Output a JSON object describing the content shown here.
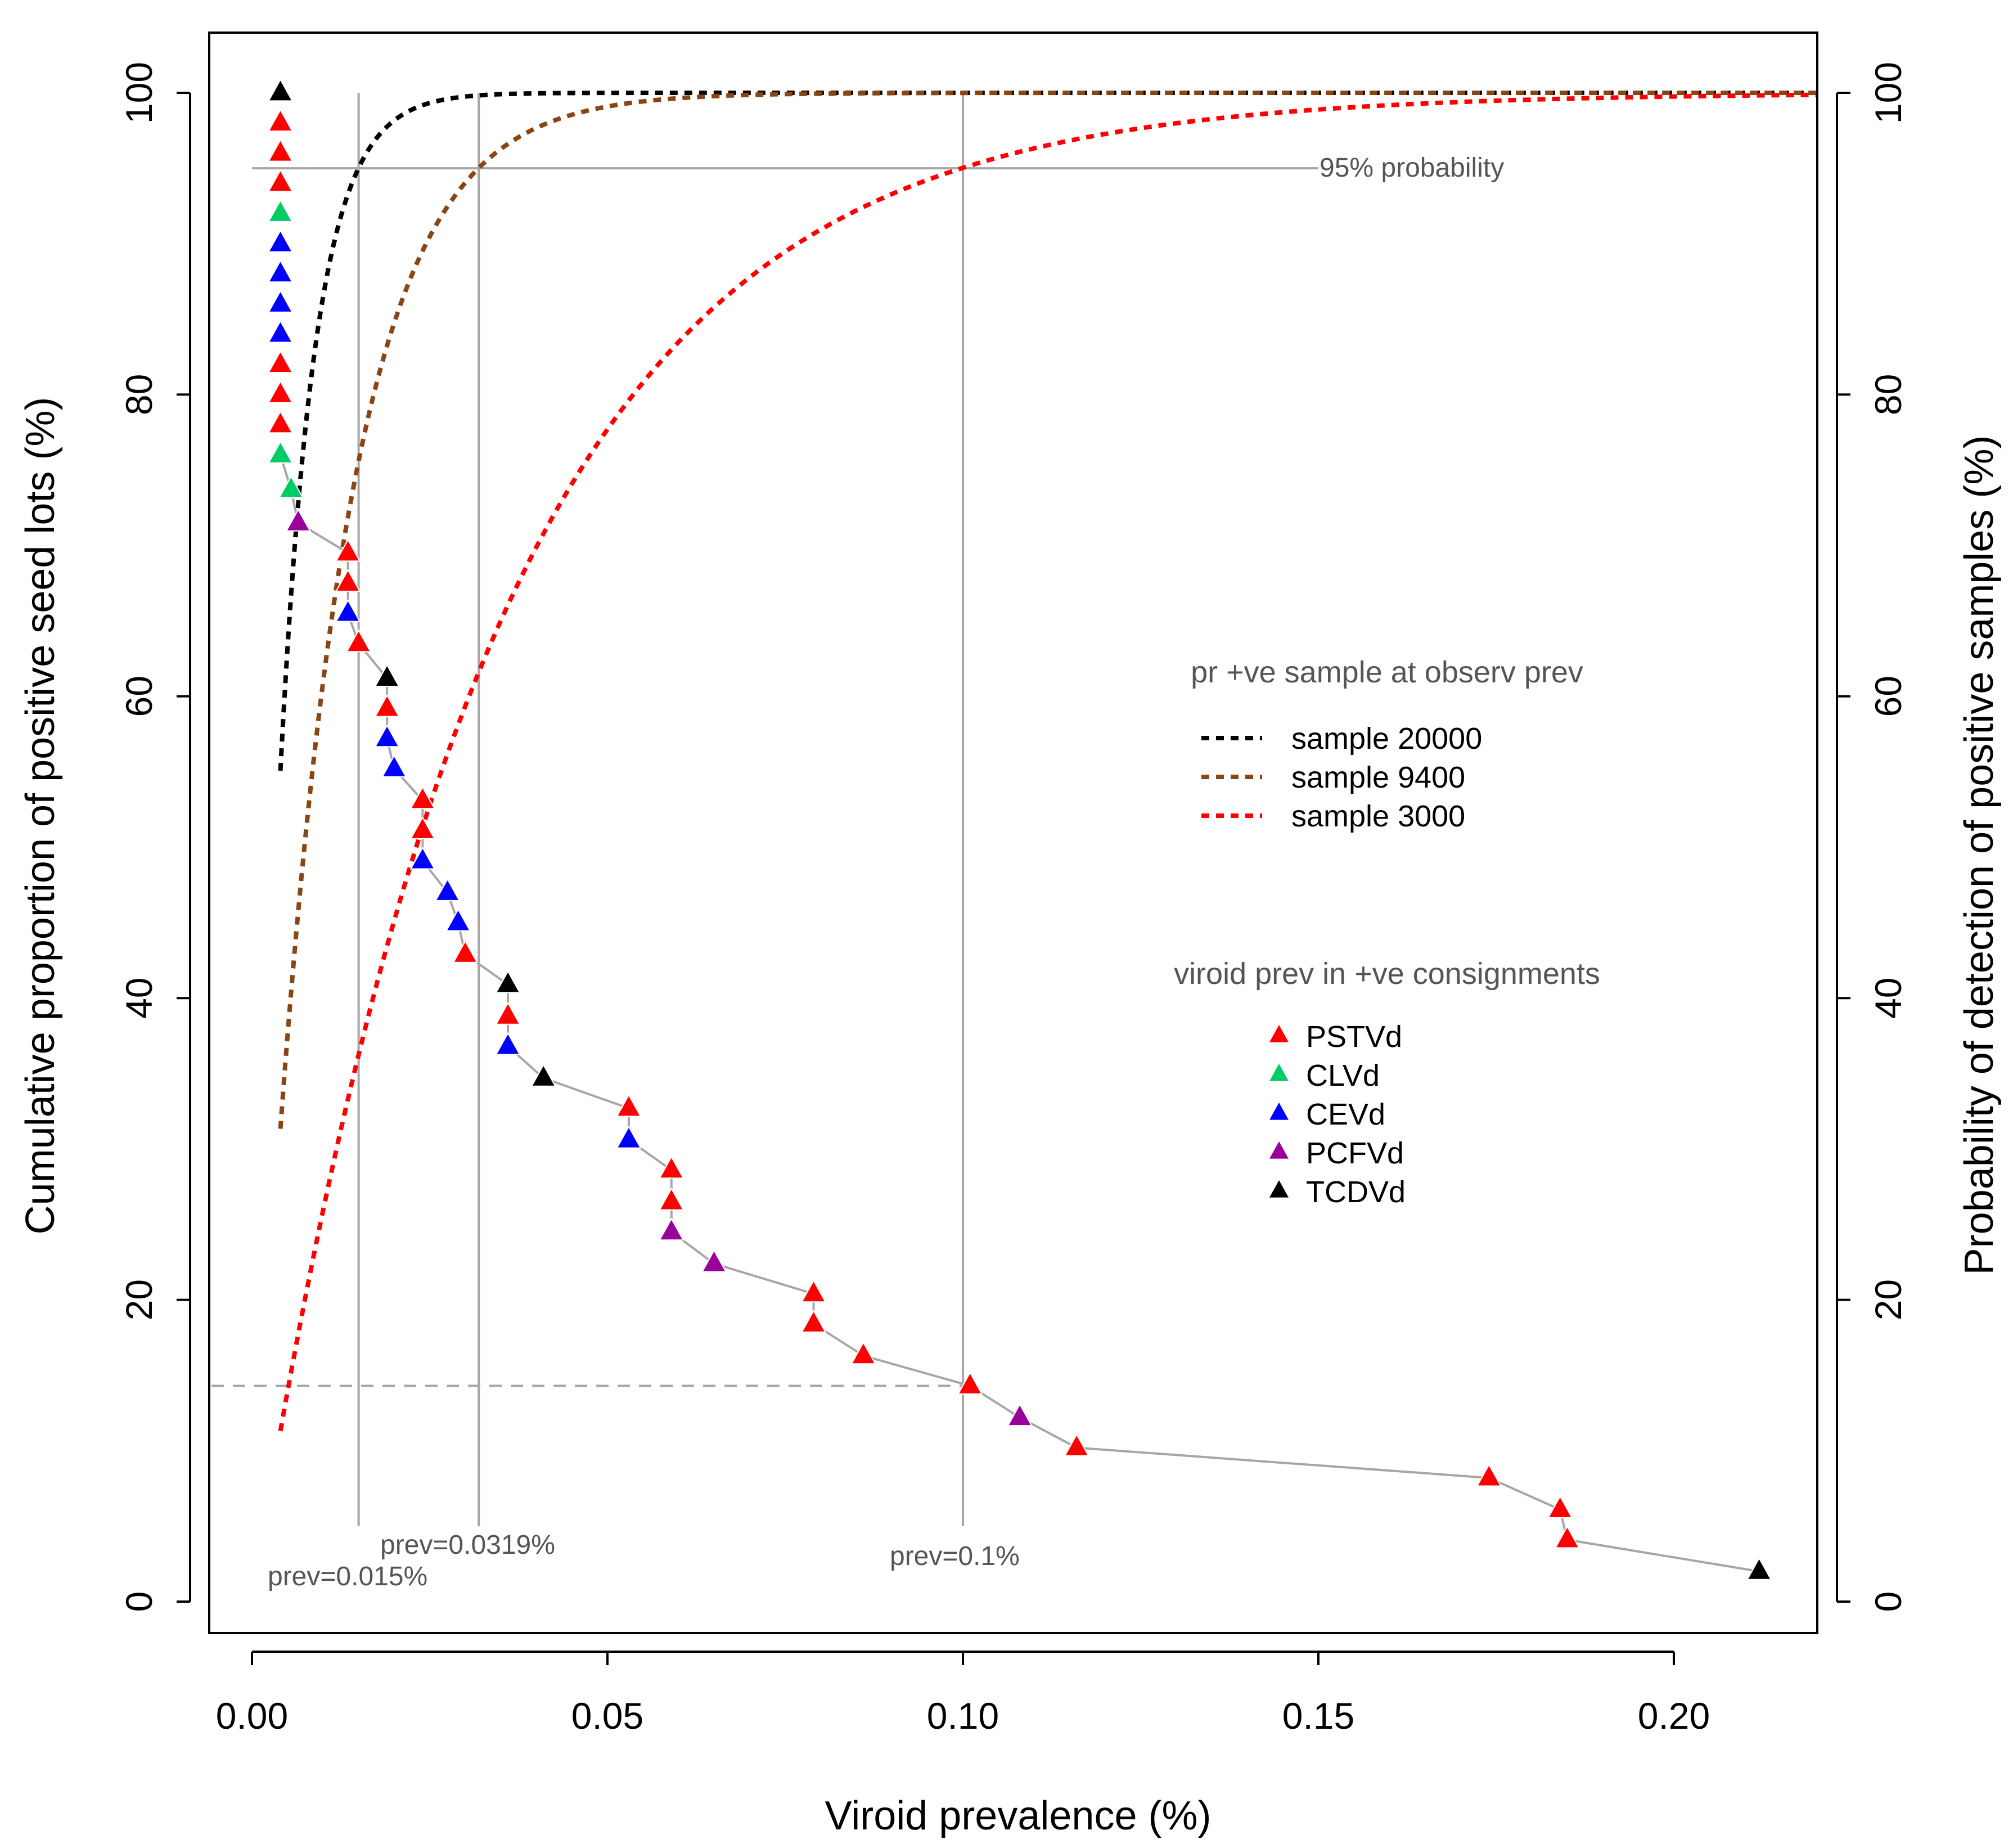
{
  "chart_data": {
    "type": "scatter",
    "xlabel": "Viroid prevalence (%)",
    "ylabel_left": "Cumulative proportion of positive seed lots (%)",
    "ylabel_right": "Probability of detection of positive samples (%)",
    "xlim": [
      0,
      0.22
    ],
    "ylim": [
      0,
      100
    ],
    "x_ticks": [
      0.0,
      0.05,
      0.1,
      0.15,
      0.2
    ],
    "x_tick_labels": [
      "0.00",
      "0.05",
      "0.10",
      "0.15",
      "0.20"
    ],
    "y_ticks": [
      0,
      20,
      40,
      60,
      80,
      100
    ],
    "y_tick_labels": [
      "0",
      "20",
      "40",
      "60",
      "80",
      "100"
    ],
    "colors": {
      "PSTVd": "#ff0000",
      "CLVd": "#00cc66",
      "CEVd": "#0000ff",
      "PCFVd": "#990099",
      "TCDVd": "#000000",
      "sample_20000": "#000000",
      "sample_9400": "#8b4513",
      "sample_3000": "#ff0000",
      "reference": "#a6a6a6"
    },
    "reference_lines": {
      "horizontal_95": 95,
      "horizontal_95_xrange": [
        0,
        0.15
      ],
      "horizontal_dashed": 14.3,
      "vertical": [
        0.015,
        0.0319,
        0.1
      ],
      "vertical_yrange": [
        5,
        100
      ]
    },
    "annotations": [
      {
        "text": "95% probability",
        "x": 0.15,
        "y": 95
      },
      {
        "text": "prev=0.015%",
        "x": 0.015,
        "y": 1.5
      },
      {
        "text": "prev=0.0319%",
        "x": 0.0319,
        "y": 3.5
      },
      {
        "text": "prev=0.1%",
        "x": 0.1,
        "y": 3.0
      }
    ],
    "curves": [
      {
        "name": "sample 20000",
        "n": 20000,
        "color_key": "sample_20000"
      },
      {
        "name": "sample 9400",
        "n": 9400,
        "color_key": "sample_9400"
      },
      {
        "name": "sample 3000",
        "n": 3000,
        "color_key": "sample_3000"
      }
    ],
    "curve_x_range": [
      0.004,
      0.22
    ],
    "legend_curves_title": "pr +ve sample at observ prev",
    "legend_points_title": "viroid prev in +ve consignments",
    "legend_points": [
      "PSTVd",
      "CLVd",
      "CEVd",
      "PCFVd",
      "TCDVd"
    ],
    "points": [
      {
        "x": 0.004,
        "y": 100,
        "viroid": "TCDVd"
      },
      {
        "x": 0.004,
        "y": 98,
        "viroid": "PSTVd"
      },
      {
        "x": 0.004,
        "y": 96,
        "viroid": "PSTVd"
      },
      {
        "x": 0.004,
        "y": 94,
        "viroid": "PSTVd"
      },
      {
        "x": 0.004,
        "y": 92,
        "viroid": "CLVd"
      },
      {
        "x": 0.004,
        "y": 90,
        "viroid": "CEVd"
      },
      {
        "x": 0.004,
        "y": 88,
        "viroid": "CEVd"
      },
      {
        "x": 0.004,
        "y": 86,
        "viroid": "CEVd"
      },
      {
        "x": 0.004,
        "y": 84,
        "viroid": "CEVd"
      },
      {
        "x": 0.004,
        "y": 82,
        "viroid": "PSTVd"
      },
      {
        "x": 0.004,
        "y": 80,
        "viroid": "PSTVd"
      },
      {
        "x": 0.004,
        "y": 78,
        "viroid": "PSTVd"
      },
      {
        "x": 0.004,
        "y": 76,
        "viroid": "CLVd"
      },
      {
        "x": 0.0055,
        "y": 73.7,
        "viroid": "CLVd"
      },
      {
        "x": 0.0065,
        "y": 71.5,
        "viroid": "PCFVd"
      },
      {
        "x": 0.0135,
        "y": 69.5,
        "viroid": "PSTVd"
      },
      {
        "x": 0.0135,
        "y": 67.5,
        "viroid": "PSTVd"
      },
      {
        "x": 0.0135,
        "y": 65.5,
        "viroid": "CEVd"
      },
      {
        "x": 0.015,
        "y": 63.5,
        "viroid": "PSTVd"
      },
      {
        "x": 0.019,
        "y": 61.2,
        "viroid": "TCDVd"
      },
      {
        "x": 0.019,
        "y": 59.2,
        "viroid": "PSTVd"
      },
      {
        "x": 0.019,
        "y": 57.2,
        "viroid": "CEVd"
      },
      {
        "x": 0.02,
        "y": 55.2,
        "viroid": "CEVd"
      },
      {
        "x": 0.024,
        "y": 53.1,
        "viroid": "PSTVd"
      },
      {
        "x": 0.024,
        "y": 51.1,
        "viroid": "PSTVd"
      },
      {
        "x": 0.024,
        "y": 49.1,
        "viroid": "CEVd"
      },
      {
        "x": 0.0275,
        "y": 47,
        "viroid": "CEVd"
      },
      {
        "x": 0.029,
        "y": 45,
        "viroid": "CEVd"
      },
      {
        "x": 0.03,
        "y": 42.9,
        "viroid": "PSTVd"
      },
      {
        "x": 0.036,
        "y": 40.9,
        "viroid": "TCDVd"
      },
      {
        "x": 0.036,
        "y": 38.8,
        "viroid": "PSTVd"
      },
      {
        "x": 0.036,
        "y": 36.8,
        "viroid": "CEVd"
      },
      {
        "x": 0.041,
        "y": 34.7,
        "viroid": "TCDVd"
      },
      {
        "x": 0.053,
        "y": 32.7,
        "viroid": "PSTVd"
      },
      {
        "x": 0.053,
        "y": 30.6,
        "viroid": "CEVd"
      },
      {
        "x": 0.059,
        "y": 28.6,
        "viroid": "PSTVd"
      },
      {
        "x": 0.059,
        "y": 26.5,
        "viroid": "PSTVd"
      },
      {
        "x": 0.059,
        "y": 24.5,
        "viroid": "PCFVd"
      },
      {
        "x": 0.065,
        "y": 22.4,
        "viroid": "PCFVd"
      },
      {
        "x": 0.079,
        "y": 20.4,
        "viroid": "PSTVd"
      },
      {
        "x": 0.079,
        "y": 18.4,
        "viroid": "PSTVd"
      },
      {
        "x": 0.086,
        "y": 16.3,
        "viroid": "PSTVd"
      },
      {
        "x": 0.101,
        "y": 14.3,
        "viroid": "PSTVd"
      },
      {
        "x": 0.108,
        "y": 12.2,
        "viroid": "PCFVd"
      },
      {
        "x": 0.116,
        "y": 10.2,
        "viroid": "PSTVd"
      },
      {
        "x": 0.174,
        "y": 8.2,
        "viroid": "PSTVd"
      },
      {
        "x": 0.184,
        "y": 6.1,
        "viroid": "PSTVd"
      },
      {
        "x": 0.185,
        "y": 4.1,
        "viroid": "PSTVd"
      },
      {
        "x": 0.212,
        "y": 2.0,
        "viroid": "TCDVd"
      }
    ]
  }
}
